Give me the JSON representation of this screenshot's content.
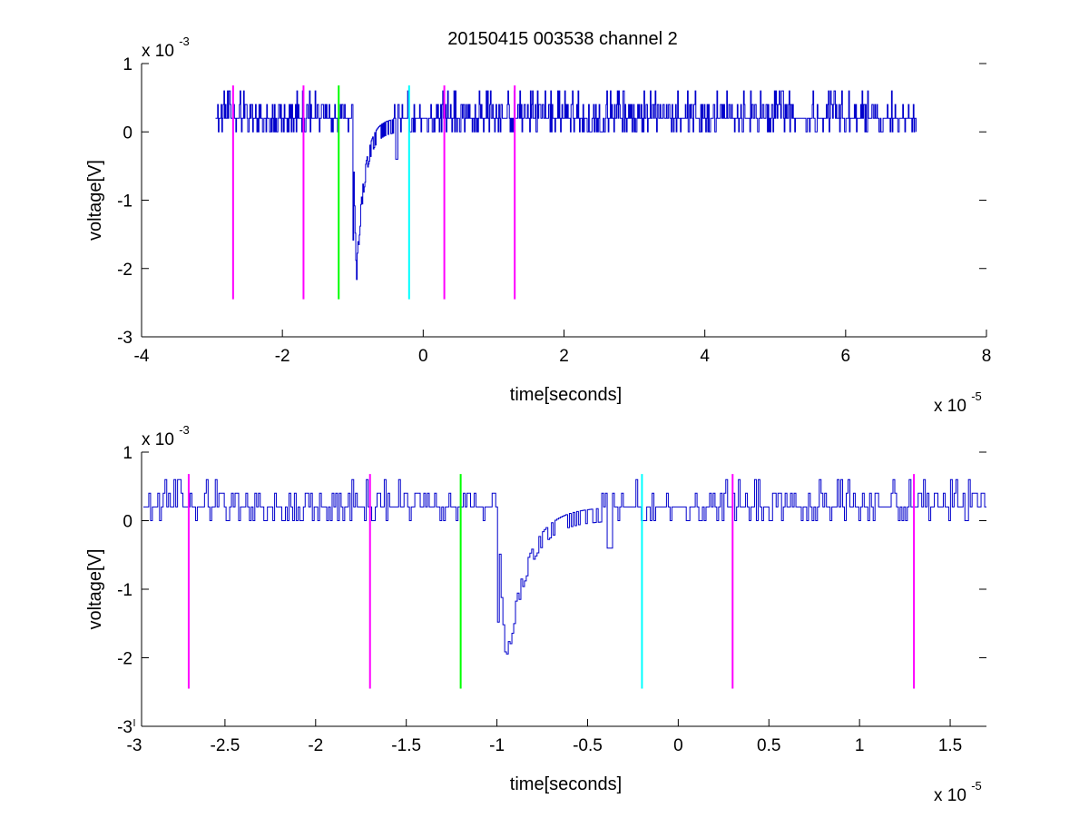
{
  "figure_title": "20150415 003538 channel 2",
  "colors": {
    "trace": "#0000cc",
    "marker_magenta": "#ff00ff",
    "marker_green": "#00ff00",
    "marker_cyan": "#00ffff",
    "axes": "#000000",
    "background": "#ffffff"
  },
  "chart_data": [
    {
      "type": "line",
      "xlabel": "time[seconds]",
      "ylabel": "voltage[V]",
      "x_exponent_base": "x 10",
      "x_exponent_power": "-5",
      "y_exponent_base": "x 10",
      "y_exponent_power": "-3",
      "xlim": [
        -4,
        8
      ],
      "ylim": [
        -3,
        1
      ],
      "xticks": [
        "-4",
        "-2",
        "0",
        "2",
        "4",
        "6",
        "8"
      ],
      "yticks": [
        "1",
        "0",
        "-1",
        "-2",
        "-3"
      ],
      "grid": false,
      "legend": "none",
      "series": [
        {
          "values_note_units": "x in 1e-5 s, y in 1e-3 V",
          "x_start": -2.95,
          "x_end": 7.0,
          "baseline": 0.2,
          "noise_levels": [
            0.0,
            0.2,
            0.4,
            0.6
          ],
          "spike_time": -0.98,
          "spike_min": -2.2,
          "minor_dip_time": -0.38,
          "minor_dip_min": -0.4
        }
      ],
      "markers": [
        {
          "x": -2.7,
          "color": "magenta",
          "ymin": -2.45,
          "ymax": 0.68
        },
        {
          "x": -1.7,
          "color": "magenta",
          "ymin": -2.45,
          "ymax": 0.68
        },
        {
          "x": -1.2,
          "color": "green",
          "ymin": -2.45,
          "ymax": 0.68
        },
        {
          "x": -0.2,
          "color": "cyan",
          "ymin": -2.45,
          "ymax": 0.68
        },
        {
          "x": 0.3,
          "color": "magenta",
          "ymin": -2.45,
          "ymax": 0.68
        },
        {
          "x": 1.3,
          "color": "magenta",
          "ymin": -2.45,
          "ymax": 0.68
        }
      ]
    },
    {
      "type": "line",
      "xlabel": "time[seconds]",
      "ylabel": "voltage[V]",
      "x_exponent_base": "x 10",
      "x_exponent_power": "-5",
      "y_exponent_base": "x 10",
      "y_exponent_power": "-3",
      "xlim": [
        -2.96,
        1.7
      ],
      "ylim": [
        -3,
        1
      ],
      "xtick_values": [
        -3,
        -2.5,
        -2,
        -1.5,
        -1,
        -0.5,
        0,
        0.5,
        1,
        1.5
      ],
      "xticks": [
        "-3",
        "-2.5",
        "-2",
        "-1.5",
        "-1",
        "-0.5",
        "0",
        "0.5",
        "1",
        "1.5"
      ],
      "yticks": [
        "1",
        "0",
        "-1",
        "-2",
        "-3"
      ],
      "grid": false,
      "legend": "none",
      "series": [
        {
          "values_note_units": "x in 1e-5 s, y in 1e-3 V",
          "x_start": -2.95,
          "x_end": 1.7,
          "baseline": 0.2,
          "noise_levels": [
            0.0,
            0.2,
            0.4,
            0.6
          ],
          "spike_time": -0.98,
          "spike_min": -2.2,
          "minor_dip_time": -0.38,
          "minor_dip_min": -0.4
        }
      ],
      "markers": [
        {
          "x": -2.7,
          "color": "magenta",
          "ymin": -2.45,
          "ymax": 0.68
        },
        {
          "x": -1.7,
          "color": "magenta",
          "ymin": -2.45,
          "ymax": 0.68
        },
        {
          "x": -1.2,
          "color": "green",
          "ymin": -2.45,
          "ymax": 0.68
        },
        {
          "x": -0.2,
          "color": "cyan",
          "ymin": -2.45,
          "ymax": 0.68
        },
        {
          "x": 0.3,
          "color": "magenta",
          "ymin": -2.45,
          "ymax": 0.68
        },
        {
          "x": 1.3,
          "color": "magenta",
          "ymin": -2.45,
          "ymax": 0.68
        }
      ]
    }
  ]
}
